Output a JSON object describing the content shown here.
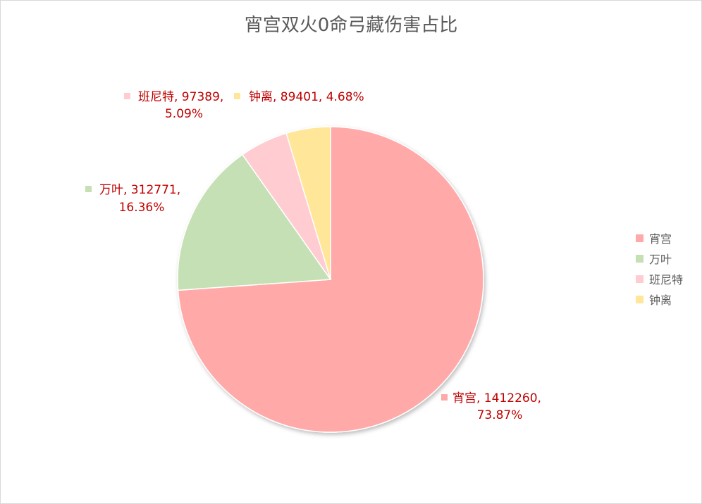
{
  "chart_data": {
    "type": "pie",
    "title": "宵宫双火0命弓藏伤害占比",
    "categories": [
      "宵宫",
      "万叶",
      "班尼特",
      "钟离"
    ],
    "values": [
      1412260,
      312771,
      97389,
      89401
    ],
    "percentages": [
      "73.87%",
      "16.36%",
      "5.09%",
      "4.68%"
    ],
    "colors": [
      "#ffa9a9",
      "#c5e0b4",
      "#ffccd1",
      "#ffe699"
    ],
    "data_labels": [
      [
        "宵宫, 1412260,",
        "73.87%"
      ],
      [
        "万叶, 312771,",
        "16.36%"
      ],
      [
        "班尼特, 97389,",
        "5.09%"
      ],
      [
        "钟离, 89401, 4.68%"
      ]
    ],
    "legend": [
      "宵宫",
      "万叶",
      "班尼特",
      "钟离"
    ],
    "legend_position": "right"
  }
}
